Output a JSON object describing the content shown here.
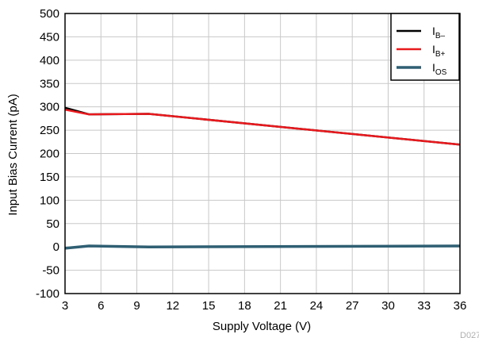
{
  "chart_data": {
    "type": "line",
    "xlabel": "Supply Voltage (V)",
    "ylabel": "Input Bias Current (pA)",
    "xlim": [
      3,
      36
    ],
    "ylim": [
      -100,
      500
    ],
    "xticks": [
      "3",
      "6",
      "9",
      "12",
      "15",
      "18",
      "21",
      "24",
      "27",
      "30",
      "33",
      "36"
    ],
    "yticks": [
      "-100",
      "-50",
      "0",
      "50",
      "100",
      "150",
      "200",
      "250",
      "300",
      "350",
      "400",
      "450",
      "500"
    ],
    "grid": true,
    "legend_position": "top-right",
    "series": [
      {
        "name_main": "I",
        "name_sub": "B–",
        "color": "#000000",
        "x": [
          3,
          5,
          10,
          36
        ],
        "y": [
          298,
          284,
          285,
          219
        ]
      },
      {
        "name_main": "I",
        "name_sub": "B+",
        "color": "#e8191d",
        "x": [
          3,
          5,
          10,
          36
        ],
        "y": [
          294,
          284,
          285,
          219
        ]
      },
      {
        "name_main": "I",
        "name_sub": "OS",
        "color": "#2f5f73",
        "x": [
          3,
          5,
          10,
          36
        ],
        "y": [
          -3,
          2,
          0,
          2
        ]
      }
    ],
    "figure_code": "D027"
  }
}
